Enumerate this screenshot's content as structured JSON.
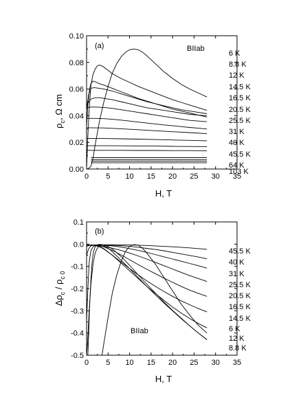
{
  "chart_data": [
    {
      "type": "line",
      "panel_label": "(a)",
      "annotation": "BIIab",
      "xlabel": "H, T",
      "ylabel_main": "ρ",
      "ylabel_sub": "c",
      "ylabel_rest": ",  Ω  cm",
      "xlim": [
        0,
        35
      ],
      "ylim": [
        0,
        0.1
      ],
      "xticks": [
        0,
        5,
        10,
        15,
        20,
        25,
        30,
        35
      ],
      "xtick_labels": [
        "0",
        "5",
        "10",
        "15",
        "20",
        "25",
        "30",
        "35"
      ],
      "yticks": [
        0,
        0.02,
        0.04,
        0.06,
        0.08,
        0.1
      ],
      "ytick_labels": [
        "0.00",
        "0.02",
        "0.04",
        "0.06",
        "0.08",
        "0.10"
      ],
      "grid": false,
      "legend_items": [
        "6 K",
        "8.8 K",
        "12 K",
        "14.5 K",
        "16.5 K",
        "20.5 K",
        "25.5 K",
        "31 K",
        "40 K",
        "45.5 K",
        "64 K",
        "103 K"
      ],
      "series": [
        {
          "x": [
            0,
            0.3,
            0.6,
            1,
            1.5,
            2,
            3,
            4,
            5,
            6,
            7,
            8,
            9,
            10,
            11,
            12,
            13,
            14,
            16,
            18,
            20,
            22,
            24,
            26,
            28
          ],
          "y": [
            0,
            0.0003,
            0.0008,
            0.002,
            0.008,
            0.018,
            0.036,
            0.05,
            0.062,
            0.072,
            0.079,
            0.084,
            0.0875,
            0.0895,
            0.09,
            0.0895,
            0.0878,
            0.085,
            0.079,
            0.073,
            0.068,
            0.0635,
            0.06,
            0.057,
            0.054
          ]
        },
        {
          "x": [
            0,
            0.3,
            0.6,
            1,
            1.5,
            2,
            2.5,
            3,
            3.5,
            4,
            5,
            6,
            8,
            10,
            12,
            14,
            16,
            18,
            20,
            22,
            24,
            26,
            28
          ],
          "y": [
            0,
            0.025,
            0.045,
            0.063,
            0.071,
            0.075,
            0.0775,
            0.078,
            0.0775,
            0.0765,
            0.074,
            0.0715,
            0.068,
            0.065,
            0.062,
            0.0595,
            0.057,
            0.0545,
            0.052,
            0.05,
            0.048,
            0.046,
            0.044
          ]
        },
        {
          "x": [
            0,
            0.3,
            0.7,
            1,
            1.5,
            2,
            3,
            4,
            6,
            8,
            10,
            12,
            14,
            16,
            18,
            20,
            22,
            24,
            26,
            28
          ],
          "y": [
            0.032,
            0.048,
            0.06,
            0.064,
            0.066,
            0.0655,
            0.064,
            0.063,
            0.0605,
            0.058,
            0.0555,
            0.053,
            0.051,
            0.049,
            0.047,
            0.045,
            0.0435,
            0.042,
            0.0405,
            0.039
          ]
        },
        {
          "x": [
            0,
            0.5,
            1,
            1.5,
            2,
            3,
            4,
            6,
            8,
            10,
            12,
            14,
            16,
            18,
            20,
            22,
            24,
            26,
            28
          ],
          "y": [
            0.044,
            0.056,
            0.0605,
            0.061,
            0.061,
            0.0605,
            0.06,
            0.0585,
            0.0565,
            0.0545,
            0.0525,
            0.0505,
            0.049,
            0.0475,
            0.046,
            0.0445,
            0.0435,
            0.0425,
            0.0415
          ]
        },
        {
          "x": [
            0,
            1,
            2,
            3,
            4,
            6,
            8,
            10,
            12,
            14,
            16,
            18,
            20,
            22,
            24,
            26,
            28
          ],
          "y": [
            0.048,
            0.0525,
            0.0535,
            0.0535,
            0.053,
            0.052,
            0.0505,
            0.049,
            0.0475,
            0.046,
            0.045,
            0.044,
            0.043,
            0.042,
            0.041,
            0.0405,
            0.04
          ]
        },
        {
          "x": [
            0,
            1,
            2,
            4,
            6,
            8,
            10,
            12,
            14,
            16,
            18,
            20,
            22,
            24,
            26,
            28
          ],
          "y": [
            0.046,
            0.0465,
            0.0465,
            0.0462,
            0.0455,
            0.0445,
            0.0435,
            0.0425,
            0.0415,
            0.0405,
            0.0395,
            0.0385,
            0.0375,
            0.0365,
            0.036,
            0.0355
          ]
        },
        {
          "x": [
            0,
            2,
            4,
            6,
            8,
            10,
            12,
            14,
            16,
            18,
            20,
            22,
            24,
            26,
            28
          ],
          "y": [
            0.038,
            0.038,
            0.0378,
            0.0373,
            0.0367,
            0.036,
            0.0352,
            0.0345,
            0.0338,
            0.0331,
            0.0325,
            0.0318,
            0.0312,
            0.0306,
            0.03
          ]
        },
        {
          "x": [
            0,
            4,
            8,
            12,
            16,
            20,
            24,
            28
          ],
          "y": [
            0.031,
            0.0308,
            0.0302,
            0.0295,
            0.0287,
            0.028,
            0.0273,
            0.0265
          ]
        },
        {
          "x": [
            0,
            4,
            8,
            12,
            16,
            20,
            24,
            28
          ],
          "y": [
            0.023,
            0.0229,
            0.0227,
            0.0224,
            0.0221,
            0.0218,
            0.0215,
            0.0212
          ]
        },
        {
          "x": [
            0,
            4,
            8,
            12,
            16,
            20,
            24,
            28
          ],
          "y": [
            0.0175,
            0.0175,
            0.0174,
            0.0173,
            0.0172,
            0.017,
            0.0169,
            0.0168
          ]
        },
        {
          "x": [
            0,
            4,
            8,
            12,
            16,
            20,
            24,
            28
          ],
          "y": [
            0.014,
            0.014,
            0.014,
            0.0139,
            0.0139,
            0.0138,
            0.0138,
            0.0137
          ]
        },
        {
          "x": [
            1,
            28
          ],
          "y": [
            0.0085,
            0.0085
          ]
        },
        {
          "x": [
            1,
            28
          ],
          "y": [
            0.007,
            0.007
          ]
        },
        {
          "x": [
            1,
            28
          ],
          "y": [
            0.0058,
            0.0058
          ]
        },
        {
          "x": [
            1,
            28
          ],
          "y": [
            0.0047,
            0.0047
          ]
        }
      ]
    },
    {
      "type": "line",
      "panel_label": "(b)",
      "annotation": "BIIab",
      "xlabel": "H, T",
      "ylabel_main": "Δρ",
      "ylabel_sub": "c",
      "ylabel_mid": " / ρ",
      "ylabel_sub2": "c 0",
      "xlim": [
        0,
        35
      ],
      "ylim": [
        -0.5,
        0.1
      ],
      "xticks": [
        0,
        5,
        10,
        15,
        20,
        25,
        30,
        35
      ],
      "xtick_labels": [
        "0",
        "5",
        "10",
        "15",
        "20",
        "25",
        "30",
        "35"
      ],
      "yticks": [
        -0.5,
        -0.4,
        -0.3,
        -0.2,
        -0.1,
        0,
        0.1
      ],
      "ytick_labels": [
        "-0.5",
        "-0.4",
        "-0.3",
        "-0.2",
        "-0.1",
        "0.0",
        "0.1"
      ],
      "grid": false,
      "legend_items": [
        "45.5 K",
        "40 K",
        "31 K",
        "25.5 K",
        "20.5 K",
        "16.5 K",
        "14.5 K",
        "6 K",
        "12 K",
        "8.8 K"
      ],
      "series": [
        {
          "x": [
            0,
            2,
            4,
            6,
            8,
            10,
            12,
            14,
            16,
            18,
            20,
            22,
            24,
            26,
            28
          ],
          "y": [
            -0.005,
            -0.004,
            -0.003,
            -0.003,
            -0.003,
            -0.004,
            -0.005,
            -0.006,
            -0.008,
            -0.01,
            -0.012,
            -0.014,
            -0.017,
            -0.02,
            -0.023
          ]
        },
        {
          "x": [
            0,
            2,
            4,
            6,
            8,
            10,
            12,
            14,
            16,
            18,
            20,
            22,
            24,
            26,
            28
          ],
          "y": [
            -0.005,
            -0.004,
            -0.004,
            -0.005,
            -0.007,
            -0.01,
            -0.014,
            -0.019,
            -0.024,
            -0.03,
            -0.037,
            -0.044,
            -0.051,
            -0.058,
            -0.066
          ]
        },
        {
          "x": [
            0,
            2,
            4,
            6,
            8,
            10,
            12,
            14,
            16,
            18,
            20,
            22,
            24,
            26,
            28
          ],
          "y": [
            -0.005,
            -0.004,
            -0.005,
            -0.008,
            -0.013,
            -0.02,
            -0.028,
            -0.037,
            -0.047,
            -0.057,
            -0.067,
            -0.077,
            -0.087,
            -0.097,
            -0.108
          ]
        },
        {
          "x": [
            0,
            2,
            4,
            6,
            8,
            10,
            12,
            14,
            16,
            18,
            20,
            22,
            24,
            26,
            28
          ],
          "y": [
            -0.005,
            -0.005,
            -0.01,
            -0.018,
            -0.028,
            -0.04,
            -0.053,
            -0.067,
            -0.082,
            -0.097,
            -0.112,
            -0.127,
            -0.142,
            -0.155,
            -0.168
          ]
        },
        {
          "x": [
            0,
            1,
            2,
            3,
            4,
            6,
            8,
            10,
            12,
            14,
            16,
            18,
            20,
            22,
            24,
            26,
            28
          ],
          "y": [
            -0.01,
            -0.004,
            -0.004,
            -0.007,
            -0.012,
            -0.028,
            -0.048,
            -0.07,
            -0.092,
            -0.113,
            -0.133,
            -0.153,
            -0.172,
            -0.19,
            -0.207,
            -0.222,
            -0.235
          ]
        },
        {
          "x": [
            0,
            0.5,
            1,
            1.5,
            2,
            3,
            4,
            6,
            8,
            10,
            12,
            14,
            16,
            18,
            20,
            22,
            24,
            26,
            28
          ],
          "y": [
            -0.05,
            -0.02,
            -0.008,
            -0.005,
            -0.006,
            -0.012,
            -0.022,
            -0.05,
            -0.08,
            -0.11,
            -0.138,
            -0.165,
            -0.19,
            -0.213,
            -0.235,
            -0.255,
            -0.273,
            -0.29,
            -0.305
          ]
        },
        {
          "x": [
            0,
            0.3,
            0.6,
            1,
            1.5,
            2,
            3,
            4,
            6,
            8,
            10,
            12,
            14,
            16,
            18,
            20,
            22,
            24,
            26,
            28
          ],
          "y": [
            -0.35,
            -0.2,
            -0.08,
            -0.03,
            -0.012,
            -0.007,
            -0.01,
            -0.02,
            -0.05,
            -0.085,
            -0.12,
            -0.155,
            -0.19,
            -0.222,
            -0.253,
            -0.283,
            -0.31,
            -0.335,
            -0.357,
            -0.377
          ]
        },
        {
          "x": [
            3.6,
            4,
            5,
            6,
            7,
            8,
            9,
            10,
            11,
            12,
            13,
            14,
            16,
            18,
            20,
            22,
            24,
            26,
            28
          ],
          "y": [
            -0.5,
            -0.45,
            -0.33,
            -0.22,
            -0.14,
            -0.08,
            -0.035,
            -0.01,
            -0.002,
            -0.005,
            -0.018,
            -0.04,
            -0.09,
            -0.15,
            -0.21,
            -0.27,
            -0.32,
            -0.365,
            -0.4
          ]
        },
        {
          "x": [
            0.3,
            0.5,
            0.7,
            1,
            1.3,
            1.6,
            2,
            2.5,
            3,
            3.5,
            4,
            5,
            6,
            8,
            10,
            12,
            14,
            16,
            18,
            20,
            22,
            24,
            26,
            28
          ],
          "y": [
            -0.5,
            -0.4,
            -0.28,
            -0.16,
            -0.08,
            -0.035,
            -0.012,
            -0.003,
            -0.001,
            -0.002,
            -0.006,
            -0.018,
            -0.034,
            -0.072,
            -0.11,
            -0.15,
            -0.19,
            -0.228,
            -0.265,
            -0.3,
            -0.335,
            -0.368,
            -0.4,
            -0.43
          ]
        },
        {
          "x": [
            0,
            0.2,
            0.4,
            0.6,
            1,
            1.5,
            2,
            2.5,
            3,
            4,
            5,
            6,
            8,
            10,
            12,
            14,
            16,
            18,
            20,
            22,
            24,
            26,
            28
          ],
          "y": [
            -0.5,
            -0.45,
            -0.38,
            -0.3,
            -0.18,
            -0.09,
            -0.04,
            -0.018,
            -0.007,
            -0.004,
            -0.01,
            -0.022,
            -0.055,
            -0.095,
            -0.138,
            -0.18,
            -0.22,
            -0.26,
            -0.298,
            -0.333,
            -0.368,
            -0.4,
            -0.43
          ]
        }
      ]
    }
  ]
}
